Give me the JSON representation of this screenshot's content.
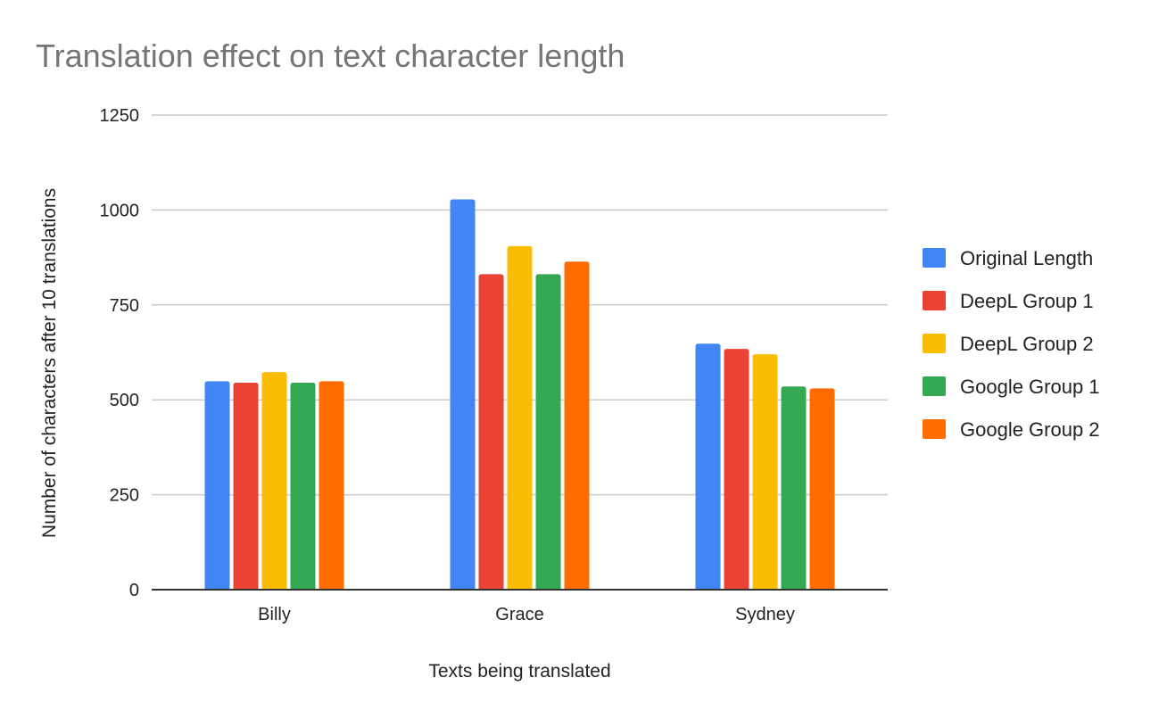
{
  "chart_data": {
    "type": "bar",
    "title": "Translation effect on text character length",
    "xlabel": "Texts being translated",
    "ylabel": "Number of characters after 10 translations",
    "categories": [
      "Billy",
      "Grace",
      "Sydney"
    ],
    "ylim": [
      0,
      1250
    ],
    "yticks": [
      0,
      250,
      500,
      750,
      1000,
      1250
    ],
    "grid": true,
    "legend_position": "right",
    "series": [
      {
        "name": "Original Length",
        "color": "#4285F4",
        "values": [
          549,
          1028,
          648
        ]
      },
      {
        "name": "DeepL Group 1",
        "color": "#EA4335",
        "values": [
          545,
          831,
          634
        ]
      },
      {
        "name": "DeepL Group 2",
        "color": "#FBBC04",
        "values": [
          573,
          905,
          620
        ]
      },
      {
        "name": "Google Group 1",
        "color": "#34A853",
        "values": [
          545,
          831,
          535
        ]
      },
      {
        "name": "Google Group 2",
        "color": "#FF6D01",
        "values": [
          549,
          864,
          530
        ]
      }
    ]
  }
}
